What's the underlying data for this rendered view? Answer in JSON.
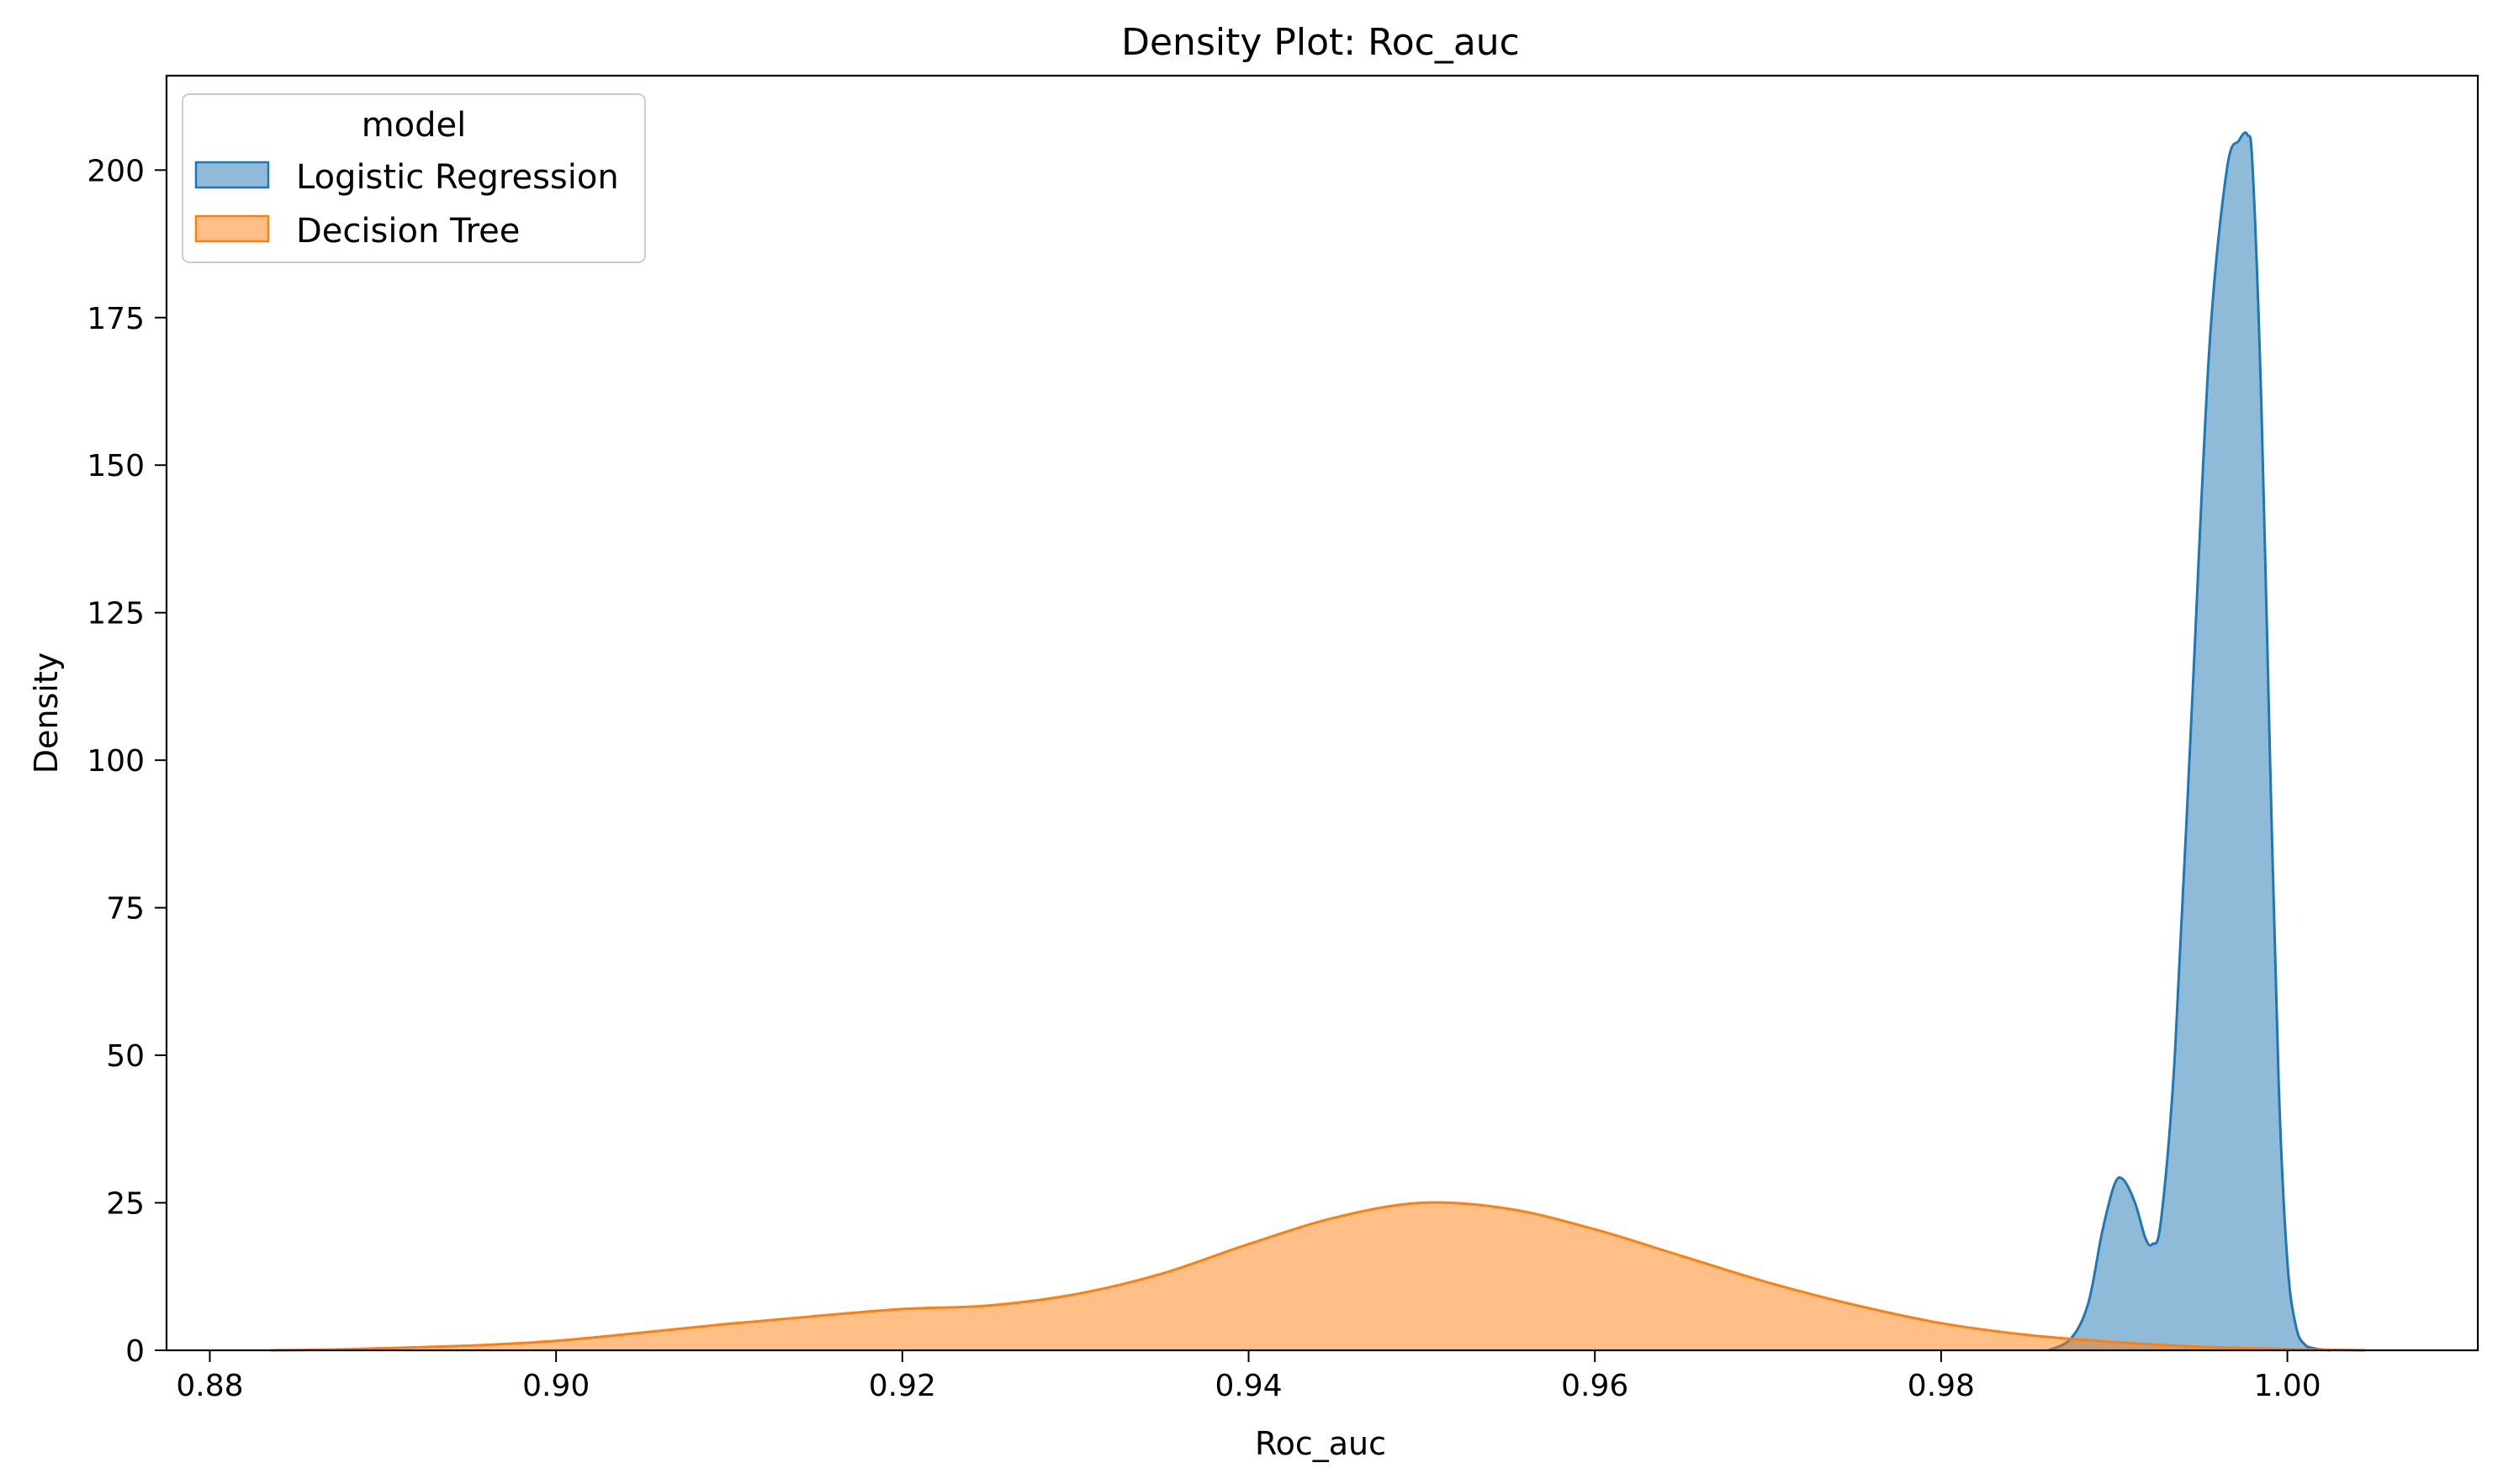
{
  "chart_data": {
    "type": "area",
    "title": "Density Plot: Roc_auc",
    "xlabel": "Roc_auc",
    "ylabel": "Density",
    "xlim": [
      0.8775,
      1.011
    ],
    "ylim": [
      0,
      216
    ],
    "x_ticks": [
      {
        "value": 0.88,
        "label": "0.88"
      },
      {
        "value": 0.9,
        "label": "0.90"
      },
      {
        "value": 0.92,
        "label": "0.92"
      },
      {
        "value": 0.94,
        "label": "0.94"
      },
      {
        "value": 0.96,
        "label": "0.96"
      },
      {
        "value": 0.98,
        "label": "0.98"
      },
      {
        "value": 1.0,
        "label": "1.00"
      }
    ],
    "y_ticks": [
      {
        "value": 0,
        "label": "0"
      },
      {
        "value": 25,
        "label": "25"
      },
      {
        "value": 50,
        "label": "50"
      },
      {
        "value": 75,
        "label": "75"
      },
      {
        "value": 100,
        "label": "100"
      },
      {
        "value": 125,
        "label": "125"
      },
      {
        "value": 150,
        "label": "150"
      },
      {
        "value": 175,
        "label": "175"
      },
      {
        "value": 200,
        "label": "200"
      }
    ],
    "grid": false,
    "legend": {
      "title": "model",
      "position": "top-left"
    },
    "series": [
      {
        "name": "Logistic Regression",
        "color": "#1f77b4",
        "fill_opacity": 0.5,
        "x": [
          0.9862,
          0.9875,
          0.9885,
          0.9893,
          0.99,
          0.9905,
          0.9912,
          0.9918,
          0.9922,
          0.9927,
          0.9935,
          0.9945,
          0.9955,
          0.9965,
          0.9972,
          0.9977,
          0.998,
          0.9985,
          0.999,
          0.9995,
          1.0,
          1.0005,
          1.001,
          1.0016,
          1.0025
        ],
        "y": [
          0,
          2,
          8,
          20,
          28,
          29,
          25,
          19,
          18,
          22,
          50,
          110,
          170,
          200,
          205,
          206,
          200,
          160,
          100,
          45,
          15,
          4,
          1,
          0.3,
          0
        ]
      },
      {
        "name": "Decision Tree",
        "color": "#ff7f0e",
        "fill_opacity": 0.5,
        "x": [
          0.8835,
          0.888,
          0.895,
          0.9,
          0.905,
          0.91,
          0.915,
          0.92,
          0.925,
          0.93,
          0.935,
          0.94,
          0.945,
          0.95,
          0.955,
          0.96,
          0.965,
          0.97,
          0.975,
          0.98,
          0.985,
          0.99,
          0.995,
          1.0,
          1.0045
        ],
        "y": [
          0,
          0.2,
          0.8,
          1.6,
          3,
          4.5,
          5.8,
          7,
          7.6,
          9.5,
          13,
          18,
          22.5,
          25,
          24,
          20.5,
          16,
          11.5,
          7.7,
          4.6,
          2.6,
          1.4,
          0.6,
          0.2,
          0
        ]
      }
    ]
  }
}
